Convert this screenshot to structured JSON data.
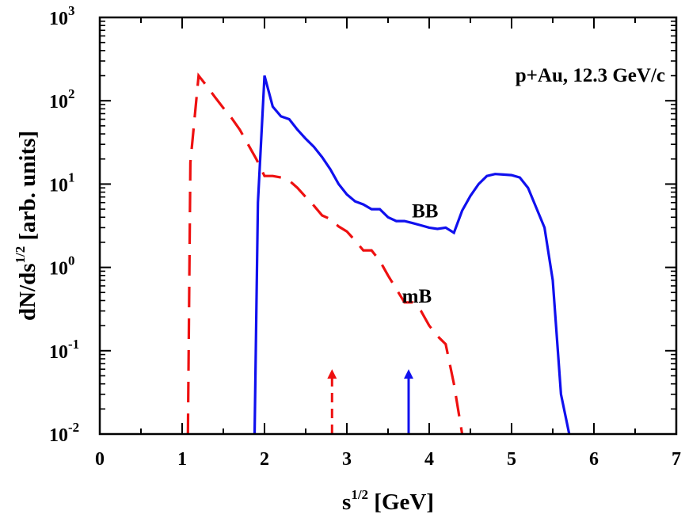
{
  "chart_data": {
    "type": "line",
    "title": "p+Au, 12.3 GeV/c",
    "xlabel": {
      "base": "s",
      "sup": "1/2",
      "rest": " [GeV]"
    },
    "ylabel": {
      "base": "dN/ds",
      "sup": "1/2",
      "rest": " [arb. units]"
    },
    "xlim": [
      0,
      7
    ],
    "ylim": [
      0.01,
      1000
    ],
    "yscale": "log",
    "x_ticks": [
      "0",
      "1",
      "2",
      "3",
      "4",
      "5",
      "6",
      "7"
    ],
    "y_ticks": [
      {
        "base": "10",
        "exp": "-2",
        "value": 0.01
      },
      {
        "base": "10",
        "exp": "-1",
        "value": 0.1
      },
      {
        "base": "10",
        "exp": "0",
        "value": 1
      },
      {
        "base": "10",
        "exp": "1",
        "value": 10
      },
      {
        "base": "10",
        "exp": "2",
        "value": 100
      },
      {
        "base": "10",
        "exp": "3",
        "value": 1000
      }
    ],
    "series": [
      {
        "name": "BB",
        "label": "BB",
        "color": "#1010ee",
        "style": "solid",
        "x": [
          1.88,
          1.92,
          2.0,
          2.1,
          2.2,
          2.3,
          2.4,
          2.5,
          2.6,
          2.7,
          2.8,
          2.9,
          3.0,
          3.1,
          3.2,
          3.3,
          3.4,
          3.5,
          3.6,
          3.7,
          3.8,
          3.9,
          4.0,
          4.1,
          4.2,
          4.3,
          4.4,
          4.5,
          4.6,
          4.7,
          4.8,
          4.9,
          5.0,
          5.1,
          5.2,
          5.3,
          5.4,
          5.5,
          5.6,
          5.7
        ],
        "y": [
          0.01,
          6,
          200,
          85,
          65,
          60,
          45,
          35,
          28,
          21,
          15,
          10,
          7.5,
          6.2,
          5.7,
          5.0,
          5.0,
          4.0,
          3.6,
          3.6,
          3.4,
          3.2,
          3.0,
          2.9,
          3.0,
          2.6,
          4.8,
          7.2,
          10,
          12.5,
          13.2,
          13,
          12.8,
          12,
          9,
          5.2,
          3.0,
          0.7,
          0.03,
          0.01
        ]
      },
      {
        "name": "mB",
        "label": "mB",
        "color": "#ee1010",
        "style": "dashed",
        "x": [
          1.07,
          1.1,
          1.2,
          1.3,
          1.4,
          1.5,
          1.6,
          1.7,
          1.8,
          1.9,
          2.0,
          2.1,
          2.2,
          2.3,
          2.4,
          2.5,
          2.6,
          2.7,
          2.8,
          2.9,
          3.0,
          3.1,
          3.2,
          3.3,
          3.4,
          3.5,
          3.6,
          3.7,
          3.8,
          3.9,
          4.0,
          4.1,
          4.2,
          4.3,
          4.4
        ],
        "y": [
          0.01,
          18,
          200,
          150,
          110,
          82,
          62,
          45,
          30,
          20,
          12.5,
          12.5,
          12.0,
          11,
          9,
          7,
          5.5,
          4.2,
          3.8,
          3.1,
          2.7,
          2.1,
          1.6,
          1.6,
          1.2,
          0.8,
          0.55,
          0.38,
          0.38,
          0.3,
          0.2,
          0.15,
          0.12,
          0.04,
          0.01
        ]
      }
    ],
    "arrows": [
      {
        "x": 2.82,
        "y_from": 0.01,
        "y_to": 0.06,
        "color": "#ee1010",
        "style": "dashed"
      },
      {
        "x": 3.75,
        "y_from": 0.01,
        "y_to": 0.06,
        "color": "#1010ee",
        "style": "solid"
      }
    ],
    "series_label_positions": [
      {
        "series": "BB",
        "x": 3.95,
        "y": 4.0
      },
      {
        "series": "mB",
        "x": 3.85,
        "y": 0.38
      }
    ]
  }
}
